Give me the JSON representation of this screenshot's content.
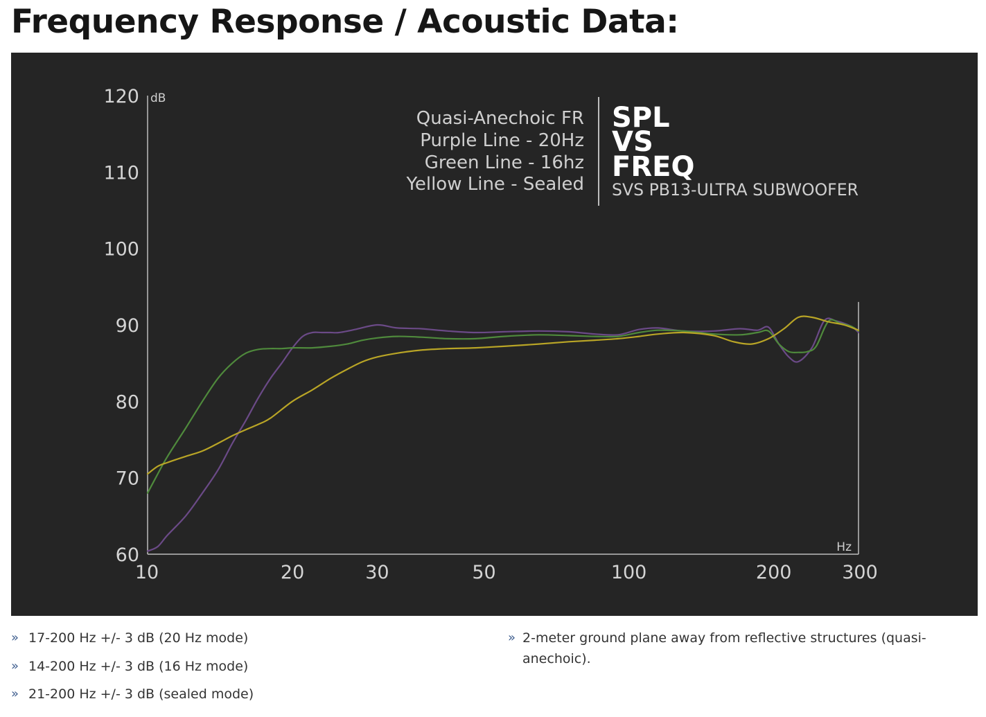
{
  "heading": "Frequency Response / Acoustic Data:",
  "colors": {
    "panel_background": "#252525",
    "axis": "#bdbdbd",
    "legend_title": "#cccccc",
    "purple": "#6b4a87",
    "green": "#4f8a3c",
    "yellow": "#b9a526",
    "bullet": "#3a5a8c"
  },
  "chart_data": {
    "type": "line",
    "title": "SPL VS FREQ",
    "title_lines": [
      "SPL",
      "VS",
      "FREQ"
    ],
    "subtitle": "SVS PB13-ULTRA SUBWOOFER",
    "legend_title": "Quasi-Anechoic FR",
    "legend_position": "top-center",
    "y_unit": "dB",
    "x_unit": "Hz",
    "x_scale": "log",
    "xlim": [
      10,
      300
    ],
    "ylim": [
      60,
      120
    ],
    "x_ticks": [
      "10",
      "20",
      "30",
      "50",
      "100",
      "200",
      "300"
    ],
    "x_tick_values": [
      10,
      20,
      30,
      50,
      100,
      200,
      300
    ],
    "y_ticks": [
      "60",
      "70",
      "80",
      "90",
      "100",
      "110",
      "120"
    ],
    "y_tick_values": [
      60,
      70,
      80,
      90,
      100,
      110,
      120
    ],
    "grid": false,
    "series": [
      {
        "name": "Purple Line - 20Hz",
        "color": "#6b4a87",
        "x": [
          10,
          10.5,
          11,
          12,
          13,
          14,
          15,
          16,
          17,
          18,
          19,
          20,
          21,
          22,
          23,
          24,
          25,
          27,
          30,
          33,
          37,
          42,
          48,
          55,
          65,
          75,
          85,
          95,
          105,
          115,
          130,
          150,
          170,
          185,
          195,
          205,
          215,
          225,
          240,
          255,
          270,
          290,
          300
        ],
        "y": [
          60.4,
          61,
          62.5,
          65,
          68,
          71,
          74.5,
          77.5,
          80.5,
          83,
          85,
          87,
          88.5,
          89,
          89,
          89,
          89,
          89.4,
          90,
          89.6,
          89.5,
          89.2,
          89,
          89.1,
          89.2,
          89.1,
          88.8,
          88.7,
          89.4,
          89.6,
          89.2,
          89.2,
          89.5,
          89.3,
          89.7,
          87.5,
          85.8,
          85.2,
          87,
          90.6,
          90.5,
          89.8,
          89
        ]
      },
      {
        "name": "Green Line - 16hz",
        "color": "#4f8a3c",
        "x": [
          10,
          10.5,
          11,
          12,
          13,
          14,
          15,
          16,
          17,
          18,
          19,
          20,
          22,
          24,
          26,
          28,
          30,
          33,
          37,
          42,
          48,
          55,
          65,
          75,
          85,
          95,
          105,
          115,
          130,
          150,
          170,
          185,
          195,
          205,
          215,
          225,
          235,
          245,
          260,
          275,
          290,
          300
        ],
        "y": [
          68,
          70.5,
          72.8,
          76.5,
          80,
          83,
          85,
          86.3,
          86.8,
          86.9,
          86.9,
          87,
          87,
          87.2,
          87.5,
          88,
          88.3,
          88.5,
          88.4,
          88.2,
          88.2,
          88.5,
          88.7,
          88.6,
          88.5,
          88.5,
          89,
          89.3,
          89.2,
          88.8,
          88.7,
          89,
          89.2,
          87.5,
          86.5,
          86.4,
          86.5,
          87.2,
          90.5,
          90.2,
          89.8,
          89.2
        ]
      },
      {
        "name": "Yellow Line - Sealed",
        "color": "#b9a526",
        "x": [
          10,
          10.5,
          11,
          12,
          13,
          14,
          15,
          16,
          17,
          18,
          20,
          22,
          24,
          26,
          28,
          30,
          33,
          37,
          42,
          48,
          55,
          65,
          75,
          85,
          95,
          105,
          115,
          130,
          150,
          165,
          180,
          195,
          210,
          225,
          240,
          260,
          280,
          300
        ],
        "y": [
          70.5,
          71.5,
          72,
          72.8,
          73.5,
          74.5,
          75.5,
          76.3,
          77,
          77.8,
          80,
          81.5,
          83,
          84.2,
          85.2,
          85.8,
          86.3,
          86.7,
          86.9,
          87,
          87.2,
          87.5,
          87.8,
          88,
          88.2,
          88.5,
          88.8,
          89,
          88.6,
          87.8,
          87.5,
          88.2,
          89.5,
          91,
          91,
          90.4,
          90,
          89.3
        ]
      }
    ]
  },
  "specs": {
    "left": [
      "17-200 Hz +/- 3 dB (20 Hz mode)",
      "14-200 Hz +/- 3 dB (16 Hz mode)",
      "21-200 Hz +/- 3 dB (sealed mode)"
    ],
    "right": [
      "2-meter ground plane away from reflective structures (quasi-anechoic)."
    ]
  }
}
